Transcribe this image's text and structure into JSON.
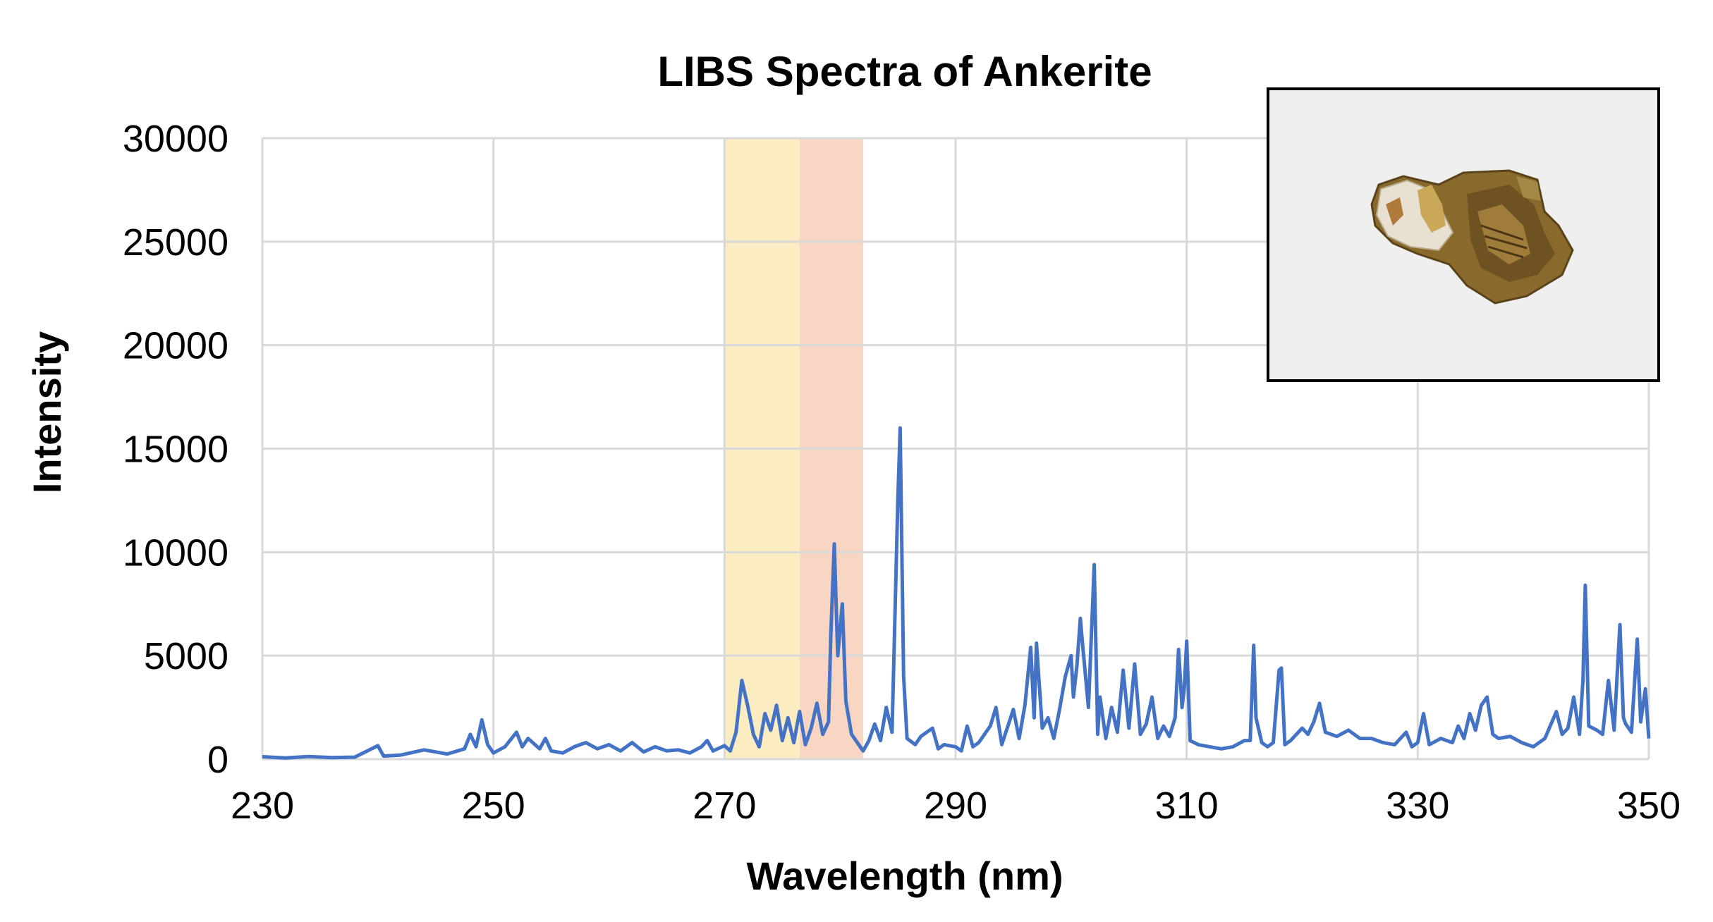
{
  "chart_data": {
    "type": "line",
    "title": "LIBS Spectra of Ankerite",
    "xlabel": "Wavelength (nm)",
    "ylabel": "Intensity",
    "xlim": [
      230,
      350
    ],
    "ylim": [
      0,
      30000
    ],
    "x_ticks": [
      "230",
      "250",
      "270",
      "290",
      "310",
      "330",
      "350"
    ],
    "y_ticks": [
      "0",
      "5000",
      "10000",
      "15000",
      "20000",
      "25000",
      "30000"
    ],
    "grid": true,
    "legend": "none",
    "highlight_bands": [
      {
        "x_start": 270,
        "x_end": 276.5,
        "color": "#fcecc2"
      },
      {
        "x_start": 276.5,
        "x_end": 282,
        "color": "#f9d6c3"
      }
    ],
    "series": [
      {
        "color": "#4472c4",
        "points": [
          [
            230,
            120
          ],
          [
            232,
            60
          ],
          [
            234,
            130
          ],
          [
            236,
            80
          ],
          [
            238,
            100
          ],
          [
            240,
            650
          ],
          [
            240.5,
            150
          ],
          [
            242,
            200
          ],
          [
            244,
            450
          ],
          [
            246,
            250
          ],
          [
            247.5,
            500
          ],
          [
            248,
            1200
          ],
          [
            248.5,
            600
          ],
          [
            249,
            1900
          ],
          [
            249.5,
            700
          ],
          [
            250,
            300
          ],
          [
            251,
            600
          ],
          [
            252,
            1300
          ],
          [
            252.5,
            600
          ],
          [
            253,
            1000
          ],
          [
            254,
            500
          ],
          [
            254.5,
            1000
          ],
          [
            255,
            400
          ],
          [
            256,
            300
          ],
          [
            257,
            600
          ],
          [
            258,
            800
          ],
          [
            259,
            500
          ],
          [
            260,
            700
          ],
          [
            261,
            400
          ],
          [
            262,
            800
          ],
          [
            263,
            350
          ],
          [
            264,
            600
          ],
          [
            265,
            400
          ],
          [
            266,
            450
          ],
          [
            267,
            300
          ],
          [
            268,
            600
          ],
          [
            268.5,
            900
          ],
          [
            269,
            400
          ],
          [
            270,
            650
          ],
          [
            270.5,
            400
          ],
          [
            271,
            1300
          ],
          [
            271.5,
            3800
          ],
          [
            272,
            2600
          ],
          [
            272.5,
            1200
          ],
          [
            273,
            600
          ],
          [
            273.5,
            2200
          ],
          [
            274,
            1400
          ],
          [
            274.5,
            2600
          ],
          [
            275,
            900
          ],
          [
            275.5,
            2000
          ],
          [
            276,
            800
          ],
          [
            276.5,
            2300
          ],
          [
            277,
            700
          ],
          [
            277.5,
            1500
          ],
          [
            278,
            2700
          ],
          [
            278.5,
            1200
          ],
          [
            279,
            1800
          ],
          [
            279.2,
            6000
          ],
          [
            279.5,
            10400
          ],
          [
            279.8,
            5000
          ],
          [
            280.2,
            7500
          ],
          [
            280.5,
            2800
          ],
          [
            281,
            1200
          ],
          [
            281.5,
            800
          ],
          [
            282,
            400
          ],
          [
            282.5,
            900
          ],
          [
            283,
            1700
          ],
          [
            283.5,
            900
          ],
          [
            284,
            2500
          ],
          [
            284.5,
            1300
          ],
          [
            285,
            12500
          ],
          [
            285.2,
            16000
          ],
          [
            285.5,
            4000
          ],
          [
            285.8,
            1000
          ],
          [
            286.5,
            700
          ],
          [
            287,
            1100
          ],
          [
            288,
            1500
          ],
          [
            288.5,
            500
          ],
          [
            289,
            700
          ],
          [
            290,
            600
          ],
          [
            290.5,
            400
          ],
          [
            291,
            1600
          ],
          [
            291.5,
            600
          ],
          [
            292,
            800
          ],
          [
            293,
            1600
          ],
          [
            293.5,
            2500
          ],
          [
            294,
            700
          ],
          [
            295,
            2400
          ],
          [
            295.5,
            1000
          ],
          [
            296,
            2600
          ],
          [
            296.5,
            5400
          ],
          [
            296.8,
            2000
          ],
          [
            297,
            5600
          ],
          [
            297.5,
            1500
          ],
          [
            298,
            2000
          ],
          [
            298.5,
            1000
          ],
          [
            299,
            2400
          ],
          [
            299.5,
            4000
          ],
          [
            300,
            5000
          ],
          [
            300.2,
            3000
          ],
          [
            300.5,
            4500
          ],
          [
            300.8,
            6800
          ],
          [
            301,
            5500
          ],
          [
            301.5,
            2500
          ],
          [
            302,
            9400
          ],
          [
            302.3,
            1200
          ],
          [
            302.5,
            3000
          ],
          [
            303,
            1000
          ],
          [
            303.5,
            2500
          ],
          [
            304,
            1300
          ],
          [
            304.5,
            4300
          ],
          [
            305,
            1500
          ],
          [
            305.5,
            4600
          ],
          [
            306,
            1200
          ],
          [
            306.5,
            1700
          ],
          [
            307,
            3000
          ],
          [
            307.5,
            1000
          ],
          [
            308,
            1600
          ],
          [
            308.5,
            1100
          ],
          [
            309,
            2000
          ],
          [
            309.3,
            5300
          ],
          [
            309.6,
            2500
          ],
          [
            309.8,
            3500
          ],
          [
            310,
            5700
          ],
          [
            310.3,
            900
          ],
          [
            311,
            700
          ],
          [
            312,
            600
          ],
          [
            313,
            500
          ],
          [
            314,
            600
          ],
          [
            315,
            900
          ],
          [
            315.5,
            900
          ],
          [
            315.8,
            5500
          ],
          [
            316,
            2000
          ],
          [
            316.5,
            800
          ],
          [
            317,
            600
          ],
          [
            317.5,
            800
          ],
          [
            318,
            4300
          ],
          [
            318.2,
            4400
          ],
          [
            318.5,
            700
          ],
          [
            319,
            900
          ],
          [
            320,
            1500
          ],
          [
            320.5,
            1200
          ],
          [
            321,
            1800
          ],
          [
            321.5,
            2700
          ],
          [
            322,
            1300
          ],
          [
            323,
            1100
          ],
          [
            324,
            1400
          ],
          [
            325,
            1000
          ],
          [
            326,
            1000
          ],
          [
            327,
            800
          ],
          [
            328,
            700
          ],
          [
            329,
            1300
          ],
          [
            329.5,
            600
          ],
          [
            330,
            800
          ],
          [
            330.5,
            2200
          ],
          [
            331,
            700
          ],
          [
            332,
            1000
          ],
          [
            333,
            800
          ],
          [
            333.5,
            1600
          ],
          [
            334,
            1000
          ],
          [
            334.5,
            2200
          ],
          [
            335,
            1400
          ],
          [
            335.5,
            2600
          ],
          [
            336,
            3000
          ],
          [
            336.5,
            1200
          ],
          [
            337,
            1000
          ],
          [
            338,
            1100
          ],
          [
            339,
            800
          ],
          [
            340,
            600
          ],
          [
            341,
            1000
          ],
          [
            342,
            2300
          ],
          [
            342.5,
            1200
          ],
          [
            343,
            1500
          ],
          [
            343.5,
            3000
          ],
          [
            344,
            1200
          ],
          [
            344.3,
            3800
          ],
          [
            344.5,
            8400
          ],
          [
            344.8,
            1600
          ],
          [
            345.5,
            1400
          ],
          [
            346,
            1200
          ],
          [
            346.5,
            3800
          ],
          [
            347,
            1400
          ],
          [
            347.5,
            6500
          ],
          [
            347.8,
            2000
          ],
          [
            348,
            1700
          ],
          [
            348.5,
            1300
          ],
          [
            349,
            5800
          ],
          [
            349.3,
            1800
          ],
          [
            349.7,
            3400
          ],
          [
            350,
            1000
          ]
        ]
      }
    ]
  },
  "inset_image": {
    "icon": "ankerite-mineral-photo",
    "background_color": "#efefef",
    "frame_color": "#000000"
  }
}
